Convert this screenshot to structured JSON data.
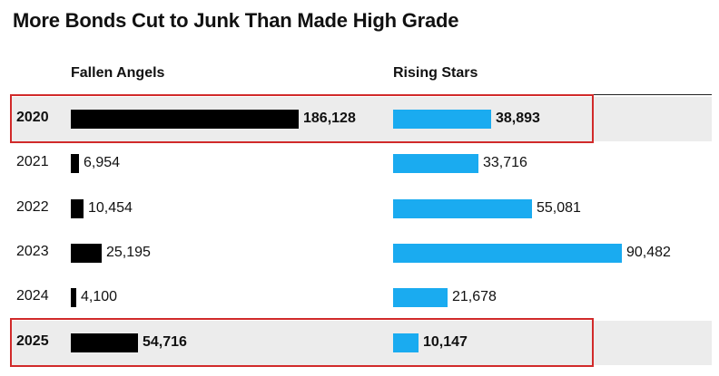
{
  "chart_data": {
    "type": "bar",
    "title": "More Bonds Cut to Junk Than Made High Grade",
    "categories": [
      "2020",
      "2021",
      "2022",
      "2023",
      "2024",
      "2025"
    ],
    "series": [
      {
        "name": "Fallen Angels",
        "values": [
          186128,
          6954,
          10454,
          25195,
          4100,
          54716
        ],
        "labels": [
          "186,128",
          "6,954",
          "10,454",
          "25,195",
          "4,100",
          "54,716"
        ],
        "color": "#000000"
      },
      {
        "name": "Rising Stars",
        "values": [
          38893,
          33716,
          55081,
          90482,
          21678,
          10147
        ],
        "labels": [
          "38,893",
          "33,716",
          "55,081",
          "90,482",
          "21,678",
          "10,147"
        ],
        "color": "#1aabf0"
      }
    ],
    "highlighted_categories": [
      "2020",
      "2025"
    ],
    "highlight_color": "#d12a2a",
    "row_shading_color": "#ececec"
  }
}
